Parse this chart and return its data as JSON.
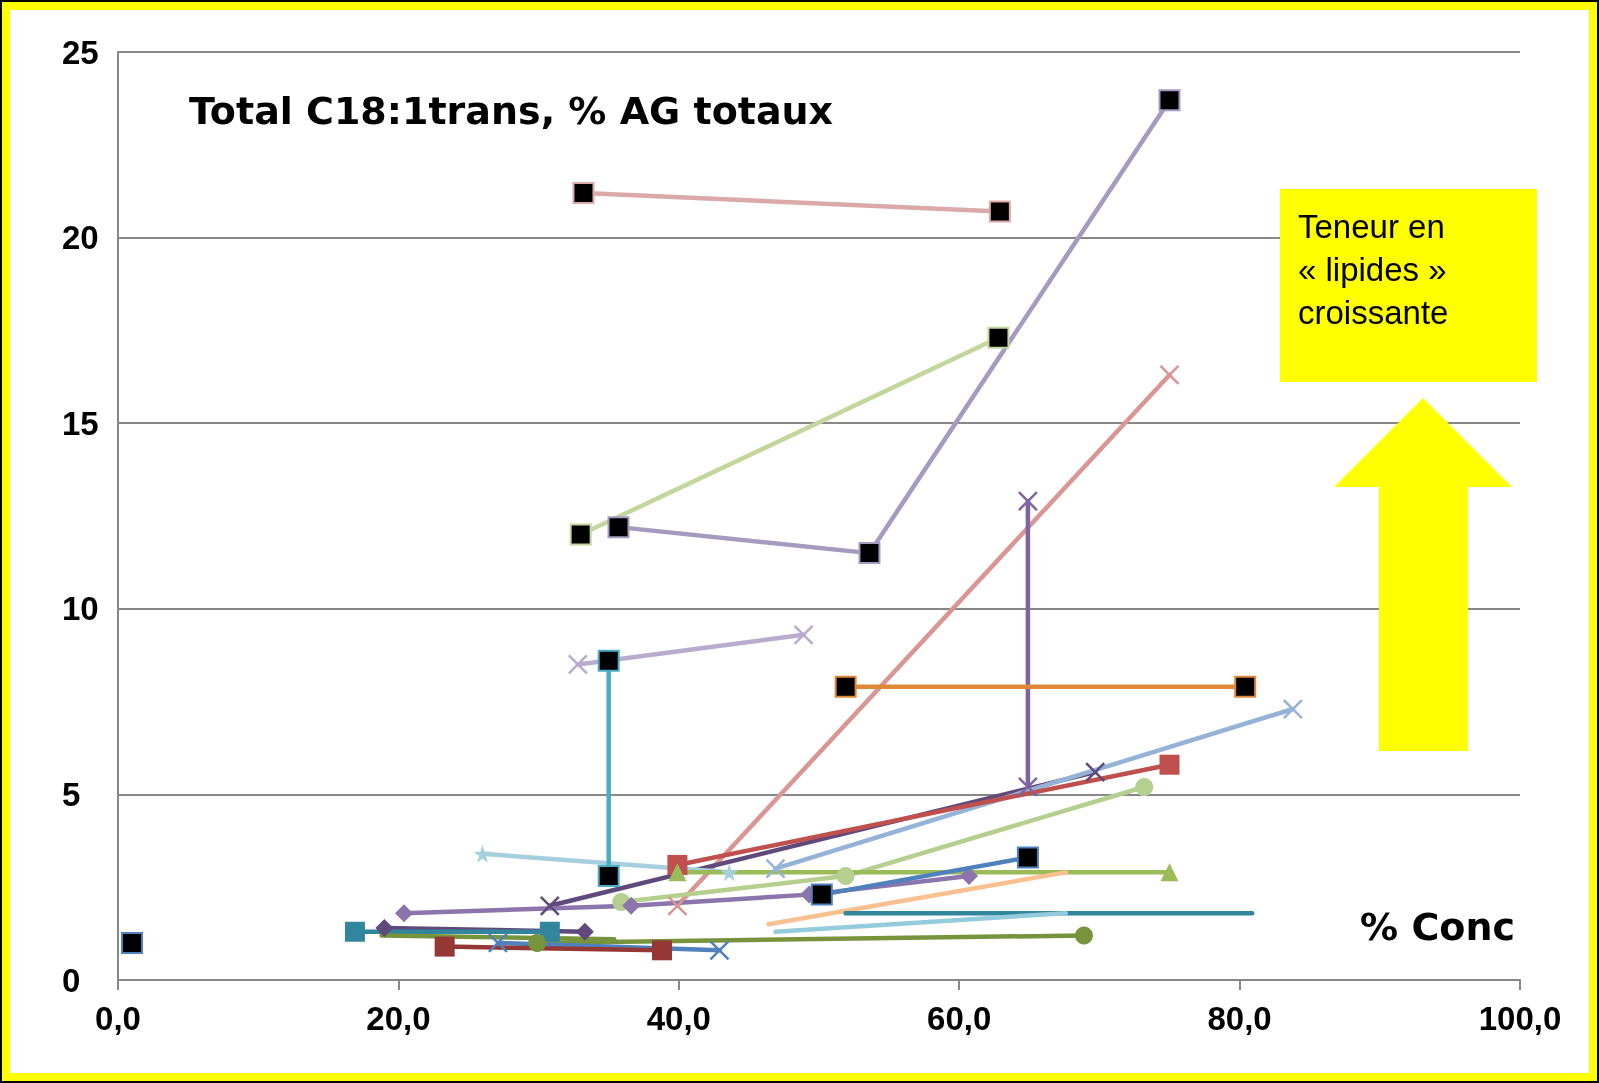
{
  "chart_data": {
    "type": "line",
    "title": "Total C18:1trans, % AG totaux",
    "xlabel": "% Conc",
    "annotations": [
      "Teneur en\n« lipides »\ncroissante"
    ],
    "xlim": [
      0,
      100
    ],
    "xticks": [
      {
        "value": 0,
        "label": "0,0"
      },
      {
        "value": 20,
        "label": "20,0"
      },
      {
        "value": 40,
        "label": "40,0"
      },
      {
        "value": 60,
        "label": "60,0"
      },
      {
        "value": 80,
        "label": "80,0"
      },
      {
        "value": 100,
        "label": "100,0"
      }
    ],
    "ylim": [
      0,
      25
    ],
    "yticks": [
      0,
      5,
      10,
      15,
      20,
      25
    ],
    "grid": "y",
    "series": [
      {
        "color": "#dba9a8",
        "marker": "square",
        "x": [
          33.2,
          62.9
        ],
        "values": [
          21.2,
          20.7
        ],
        "colors": [
          "#000000",
          "#000000"
        ]
      },
      {
        "color": "#a59bc0",
        "marker": "square",
        "x": [
          35.7,
          53.6,
          75.0
        ],
        "values": [
          12.2,
          11.5,
          23.7
        ],
        "colors": [
          "#000000",
          "#000000",
          "#000000"
        ]
      },
      {
        "color": "#c3d69b",
        "marker": "square",
        "x": [
          33.0,
          62.8
        ],
        "values": [
          12.0,
          17.3
        ],
        "colors": [
          "#000000",
          "#000000"
        ]
      },
      {
        "color": "#d99694",
        "marker": "cross",
        "x": [
          39.9,
          75.0
        ],
        "values": [
          2.0,
          16.3
        ]
      },
      {
        "color": "#8064a2",
        "marker": "cross",
        "x": [
          64.9,
          64.9
        ],
        "values": [
          12.9,
          5.2
        ]
      },
      {
        "color": "#4bacc6",
        "marker": "square",
        "x": [
          35.0,
          35.0
        ],
        "values": [
          8.6,
          2.8
        ],
        "colors": [
          "#000000",
          "#000000"
        ]
      },
      {
        "color": "#b9abcb",
        "marker": "cross",
        "x": [
          32.8,
          48.9
        ],
        "values": [
          8.5,
          9.3
        ]
      },
      {
        "color": "#e0883a",
        "marker": "square",
        "x": [
          51.9,
          80.4
        ],
        "values": [
          7.9,
          7.9
        ],
        "colors": [
          "#000000",
          "#000000"
        ]
      },
      {
        "color": "#604a7b",
        "marker": "cross",
        "x": [
          30.8,
          69.7
        ],
        "values": [
          2.0,
          5.6
        ]
      },
      {
        "color": "#95b3d7",
        "marker": "cross",
        "x": [
          46.9,
          83.8
        ],
        "values": [
          3.0,
          7.3
        ]
      },
      {
        "color": "#c0504d",
        "marker": "square",
        "x": [
          39.9,
          75.0
        ],
        "values": [
          3.1,
          5.8
        ]
      },
      {
        "color": "#b5cf8f",
        "marker": "circle",
        "x": [
          35.9,
          51.9,
          73.2
        ],
        "values": [
          2.1,
          2.8,
          5.2
        ]
      },
      {
        "color": "#a5cfdc",
        "marker": "star",
        "x": [
          26.0,
          43.6
        ],
        "values": [
          3.4,
          2.9
        ]
      },
      {
        "color": "#9bbb59",
        "marker": "triangle",
        "x": [
          39.9,
          75.0
        ],
        "values": [
          2.9,
          2.9
        ]
      },
      {
        "color": "#4f81bd",
        "marker": "square",
        "x": [
          50.2,
          64.9
        ],
        "values": [
          2.3,
          3.3
        ],
        "colors": [
          "#000000",
          "#000000"
        ]
      },
      {
        "color": "#8c74ac",
        "marker": "diamond",
        "x": [
          20.4,
          36.6,
          49.3,
          60.7
        ],
        "values": [
          1.8,
          2.0,
          2.3,
          2.8
        ]
      },
      {
        "color": "#fac090",
        "marker": "none",
        "x": [
          46.4,
          67.6
        ],
        "values": [
          1.5,
          2.9
        ]
      },
      {
        "color": "#31859c",
        "marker": "none",
        "x": [
          51.9,
          80.9
        ],
        "values": [
          1.8,
          1.8
        ]
      },
      {
        "color": "#93cddd",
        "marker": "none",
        "x": [
          46.9,
          67.6
        ],
        "values": [
          1.3,
          1.8
        ]
      },
      {
        "color": "#604a7b",
        "marker": "diamond",
        "x": [
          19.0,
          33.3
        ],
        "values": [
          1.4,
          1.3
        ]
      },
      {
        "color": "#31859c",
        "marker": "square",
        "x": [
          16.9,
          30.8
        ],
        "values": [
          1.3,
          1.3
        ]
      },
      {
        "color": "#77933c",
        "marker": "none",
        "x": [
          18.8,
          35.4
        ],
        "values": [
          1.2,
          1.1
        ]
      },
      {
        "color": "#77933c",
        "marker": "circle",
        "x": [
          29.9,
          68.9
        ],
        "values": [
          1.0,
          1.2
        ]
      },
      {
        "color": "#4f81bd",
        "marker": "cross",
        "x": [
          27.1,
          42.9
        ],
        "values": [
          1.0,
          0.8
        ]
      },
      {
        "color": "#953735",
        "marker": "square",
        "x": [
          23.3,
          38.8
        ],
        "values": [
          0.9,
          0.8
        ]
      },
      {
        "color": "#4f81bd",
        "marker": "square",
        "x": [
          1.0
        ],
        "values": [
          1.0
        ],
        "colors": [
          "#000000"
        ]
      }
    ]
  }
}
